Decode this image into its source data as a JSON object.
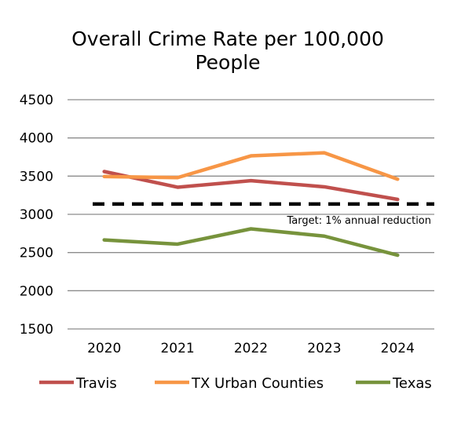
{
  "chart_data": {
    "type": "line",
    "title_lines": [
      "Overall Crime Rate per 100,000",
      "People"
    ],
    "categories": [
      "2020",
      "2021",
      "2022",
      "2023",
      "2024"
    ],
    "ylim": [
      1500,
      4500
    ],
    "yticks": [
      1500,
      2000,
      2500,
      3000,
      3500,
      4000,
      4500
    ],
    "ytick_labels": [
      "1500",
      "2000",
      "2500",
      "3000",
      "3500",
      "4000",
      "4500"
    ],
    "grid": true,
    "legend_position": "bottom",
    "series": [
      {
        "name": "Travis",
        "values": [
          3560,
          3355,
          3440,
          3360,
          3195
        ],
        "color": "#c0504d"
      },
      {
        "name": "TX Urban Counties",
        "values": [
          3495,
          3480,
          3765,
          3805,
          3460
        ],
        "color": "#f79646"
      },
      {
        "name": "Texas",
        "values": [
          2665,
          2610,
          2810,
          2715,
          2465
        ],
        "color": "#77933c"
      }
    ],
    "target": {
      "value": 3135,
      "label": "Target: 1% annual reduction",
      "color": "#000000"
    }
  }
}
